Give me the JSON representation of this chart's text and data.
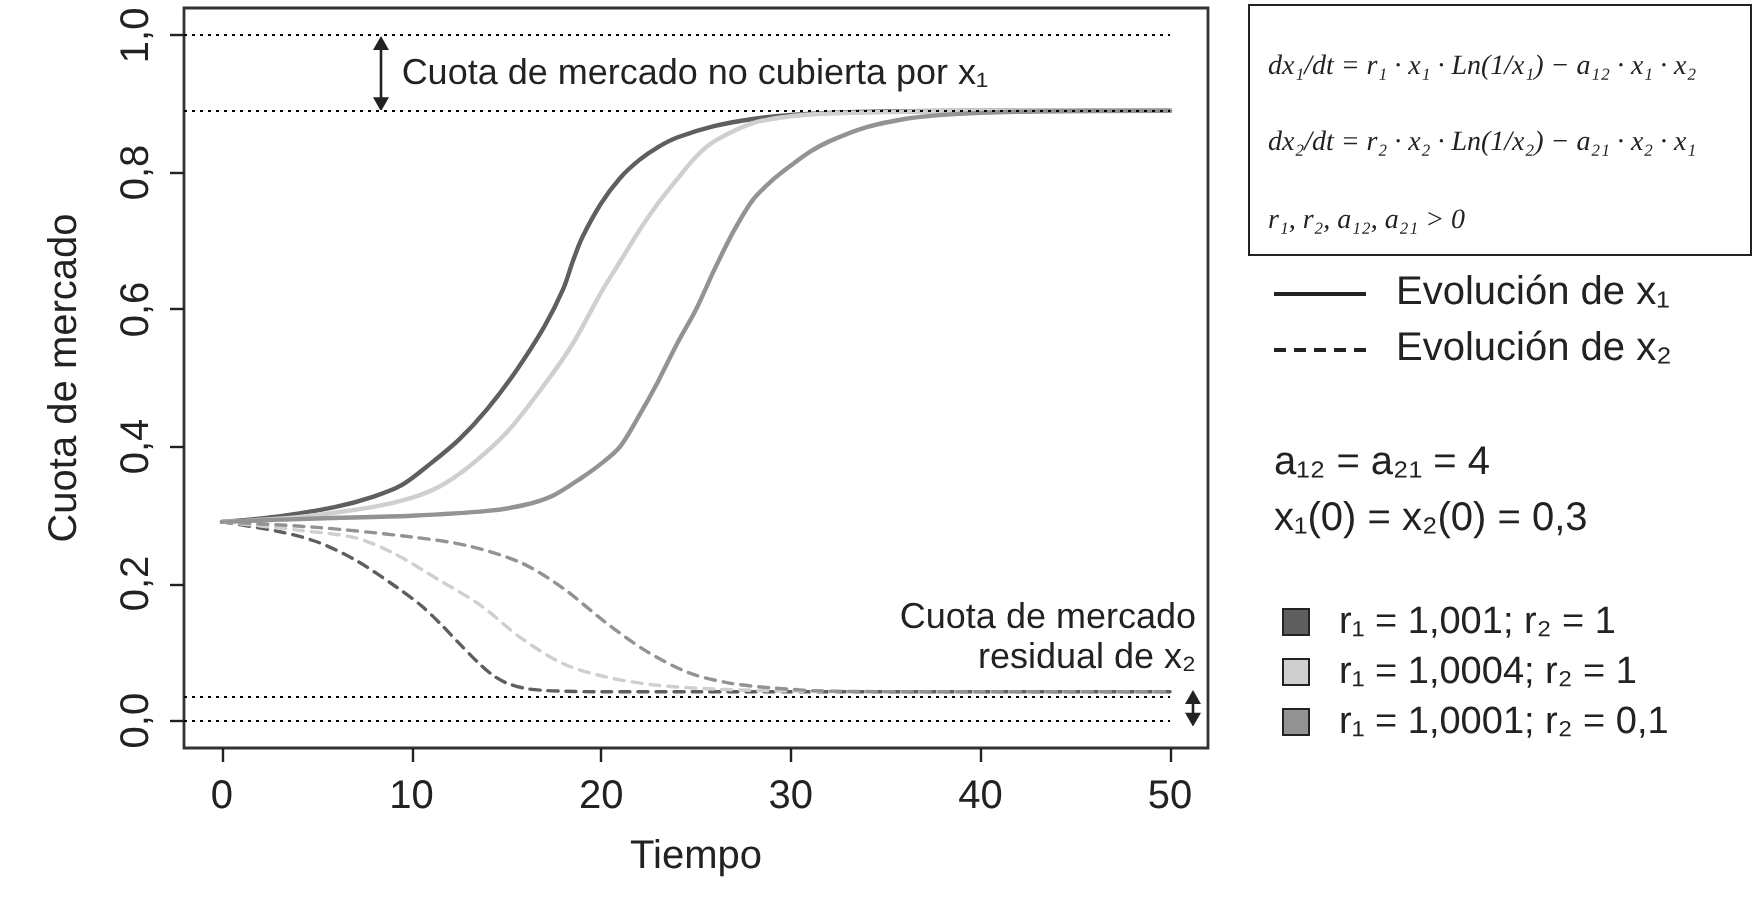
{
  "chart_data": {
    "type": "line",
    "xlabel": "Tiempo",
    "ylabel": "Cuota de mercado",
    "xlim": [
      -2,
      52
    ],
    "xticks": [
      0,
      10,
      20,
      30,
      40,
      50
    ],
    "ylim": [
      -0.04,
      1.04
    ],
    "yticks": [
      {
        "value": 0,
        "label": "0,0"
      },
      {
        "value": 0.2,
        "label": "0,2"
      },
      {
        "value": 0.4,
        "label": "0,4"
      },
      {
        "value": 0.6,
        "label": "0,6"
      },
      {
        "value": 0.8,
        "label": "0,8"
      },
      {
        "value": 1,
        "label": "1,0"
      }
    ],
    "marker": "none",
    "legend": "right",
    "series": [
      {
        "name": "r₁ = 1,001; r₂ = 1",
        "color": "#5f5f5f",
        "line_style": "solid",
        "x": [
          0,
          3,
          6,
          8,
          9.5,
          11,
          12.5,
          14,
          15.5,
          17,
          18,
          18.5,
          19,
          20,
          21,
          22,
          23,
          24,
          26,
          28,
          30,
          32,
          35,
          40,
          50
        ],
        "values": [
          0.29,
          0.298,
          0.312,
          0.327,
          0.344,
          0.375,
          0.41,
          0.455,
          0.51,
          0.575,
          0.63,
          0.67,
          0.705,
          0.755,
          0.792,
          0.818,
          0.837,
          0.851,
          0.868,
          0.878,
          0.884,
          0.887,
          0.889,
          0.89,
          0.89
        ]
      },
      {
        "name": "r₁ = 1,0004; r₂ = 1",
        "color": "#cfcfcf",
        "line_style": "solid",
        "x": [
          0,
          4,
          8,
          10,
          11.5,
          13,
          15,
          17,
          18.5,
          20,
          21,
          22,
          23,
          24,
          25,
          26,
          28,
          30,
          32,
          35,
          40,
          50
        ],
        "values": [
          0.29,
          0.297,
          0.312,
          0.325,
          0.342,
          0.37,
          0.42,
          0.49,
          0.55,
          0.625,
          0.67,
          0.715,
          0.755,
          0.79,
          0.823,
          0.846,
          0.872,
          0.882,
          0.886,
          0.888,
          0.89,
          0.89
        ]
      },
      {
        "name": "r₁ = 1,0001; r₂ = 0,1",
        "color": "#939393",
        "line_style": "solid",
        "x": [
          0,
          5,
          10,
          14,
          16,
          17.5,
          19,
          20,
          21,
          22,
          23,
          24,
          25,
          26,
          27,
          28,
          29,
          30,
          31,
          32,
          34,
          36,
          38,
          40,
          43,
          50
        ],
        "values": [
          0.29,
          0.295,
          0.299,
          0.306,
          0.315,
          0.329,
          0.355,
          0.375,
          0.4,
          0.445,
          0.495,
          0.55,
          0.6,
          0.66,
          0.715,
          0.76,
          0.788,
          0.81,
          0.83,
          0.845,
          0.866,
          0.878,
          0.884,
          0.887,
          0.889,
          0.89
        ]
      },
      {
        "color": "#5f5f5f",
        "line_style": "dashed",
        "x": [
          0,
          3,
          5,
          7,
          9.2,
          10.5,
          11.5,
          12.5,
          13.5,
          14.3,
          15,
          16,
          17,
          18,
          20,
          25,
          30,
          40,
          50
        ],
        "values": [
          0.29,
          0.276,
          0.261,
          0.235,
          0.195,
          0.168,
          0.142,
          0.113,
          0.085,
          0.066,
          0.055,
          0.047,
          0.044,
          0.043,
          0.042,
          0.042,
          0.042,
          0.042,
          0.042
        ]
      },
      {
        "color": "#cfcfcf",
        "line_style": "dashed",
        "x": [
          0,
          4,
          7,
          9,
          11.4,
          13.6,
          15.8,
          18,
          20.2,
          22.8,
          26,
          30,
          35,
          50
        ],
        "values": [
          0.29,
          0.278,
          0.267,
          0.245,
          0.206,
          0.169,
          0.12,
          0.083,
          0.064,
          0.052,
          0.046,
          0.043,
          0.042,
          0.042
        ]
      },
      {
        "color": "#939393",
        "line_style": "dashed",
        "x": [
          0,
          5,
          10,
          13,
          15.8,
          18,
          20.2,
          22.4,
          24.6,
          26.7,
          28.9,
          32,
          40,
          50
        ],
        "values": [
          0.29,
          0.282,
          0.268,
          0.255,
          0.23,
          0.193,
          0.144,
          0.101,
          0.07,
          0.055,
          0.048,
          0.043,
          0.042,
          0.042
        ]
      }
    ],
    "ref_lines": [
      {
        "axis": "y",
        "value": 1,
        "color": "#000000",
        "line_style": "dotted"
      },
      {
        "axis": "y",
        "value": 0.89,
        "color": "#000000",
        "line_style": "dotted"
      },
      {
        "axis": "y",
        "value": 0.036,
        "color": "#000000",
        "line_style": "dotted"
      },
      {
        "axis": "y",
        "value": 0,
        "color": "#000000",
        "line_style": "dotted"
      }
    ],
    "annotations": [
      "Cuota de mercado no cubierta por x₁",
      "Cuota de mercado residual de x₂",
      "dx₁/dt = r₁ · x₁ · Ln(1/x₁) − a₁₂ · x₁ · x₂",
      "dx₂/dt = r₂ · x₂ · Ln(1/x₂) − a₂₁ · x₂ · x₁",
      "r₁, r₂, a₁₂, a₂₁ > 0",
      "Evolución de x₁",
      "Evolución de x₂",
      "a₁₂ = a₂₁ = 4",
      "x₁(0) = x₂(0) = 0,3"
    ]
  }
}
